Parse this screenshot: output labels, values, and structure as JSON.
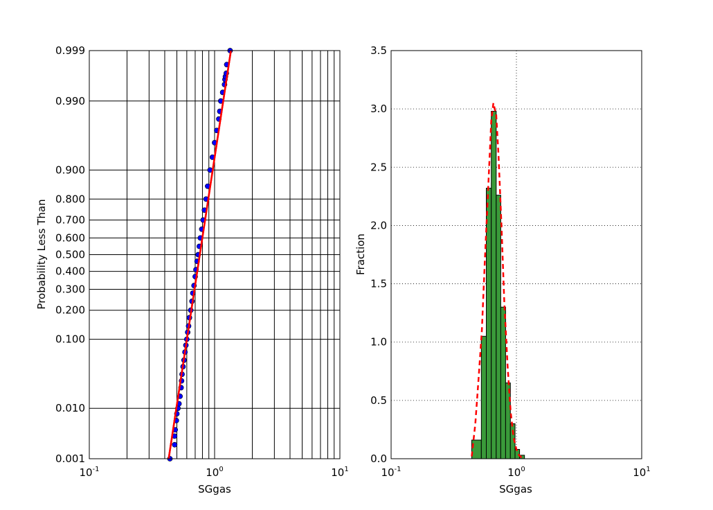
{
  "chart_data": [
    {
      "type": "scatter",
      "panel": "probability-plot",
      "xscale": "log",
      "xlim": [
        0.1,
        10
      ],
      "xlabel": "SGgas",
      "ylabel": "Probability Less Than",
      "yscale": "normal-probability",
      "ylim": [
        0.001,
        0.999
      ],
      "grid": true,
      "x_ticks": [
        {
          "value": 0.1,
          "base": "10",
          "exp": "-1"
        },
        {
          "value": 1,
          "base": "10",
          "exp": "0"
        },
        {
          "value": 10,
          "base": "10",
          "exp": "1"
        }
      ],
      "y_ticks": [
        {
          "value": 0.001,
          "label": "0.001"
        },
        {
          "value": 0.01,
          "label": "0.010"
        },
        {
          "value": 0.1,
          "label": "0.100"
        },
        {
          "value": 0.2,
          "label": "0.200"
        },
        {
          "value": 0.3,
          "label": "0.300"
        },
        {
          "value": 0.4,
          "label": "0.400"
        },
        {
          "value": 0.5,
          "label": "0.500"
        },
        {
          "value": 0.6,
          "label": "0.600"
        },
        {
          "value": 0.7,
          "label": "0.700"
        },
        {
          "value": 0.8,
          "label": "0.800"
        },
        {
          "value": 0.9,
          "label": "0.900"
        },
        {
          "value": 0.99,
          "label": "0.990"
        },
        {
          "value": 0.999,
          "label": "0.999"
        }
      ],
      "series": [
        {
          "kind": "points",
          "color": "#0000ff",
          "points": [
            {
              "x": 0.44,
              "p": 0.001
            },
            {
              "x": 0.48,
              "p": 0.002
            },
            {
              "x": 0.48,
              "p": 0.003
            },
            {
              "x": 0.485,
              "p": 0.004
            },
            {
              "x": 0.495,
              "p": 0.006
            },
            {
              "x": 0.5,
              "p": 0.008
            },
            {
              "x": 0.51,
              "p": 0.01
            },
            {
              "x": 0.52,
              "p": 0.012
            },
            {
              "x": 0.53,
              "p": 0.016
            },
            {
              "x": 0.54,
              "p": 0.022
            },
            {
              "x": 0.545,
              "p": 0.028
            },
            {
              "x": 0.55,
              "p": 0.035
            },
            {
              "x": 0.56,
              "p": 0.045
            },
            {
              "x": 0.57,
              "p": 0.055
            },
            {
              "x": 0.58,
              "p": 0.07
            },
            {
              "x": 0.59,
              "p": 0.085
            },
            {
              "x": 0.6,
              "p": 0.1
            },
            {
              "x": 0.61,
              "p": 0.12
            },
            {
              "x": 0.62,
              "p": 0.14
            },
            {
              "x": 0.63,
              "p": 0.17
            },
            {
              "x": 0.645,
              "p": 0.2
            },
            {
              "x": 0.66,
              "p": 0.24
            },
            {
              "x": 0.67,
              "p": 0.28
            },
            {
              "x": 0.685,
              "p": 0.32
            },
            {
              "x": 0.7,
              "p": 0.37
            },
            {
              "x": 0.71,
              "p": 0.41
            },
            {
              "x": 0.725,
              "p": 0.46
            },
            {
              "x": 0.74,
              "p": 0.5
            },
            {
              "x": 0.755,
              "p": 0.55
            },
            {
              "x": 0.77,
              "p": 0.6
            },
            {
              "x": 0.79,
              "p": 0.65
            },
            {
              "x": 0.81,
              "p": 0.7
            },
            {
              "x": 0.83,
              "p": 0.75
            },
            {
              "x": 0.855,
              "p": 0.8
            },
            {
              "x": 0.88,
              "p": 0.85
            },
            {
              "x": 0.92,
              "p": 0.9
            },
            {
              "x": 0.96,
              "p": 0.93
            },
            {
              "x": 1.0,
              "p": 0.955
            },
            {
              "x": 1.04,
              "p": 0.97
            },
            {
              "x": 1.08,
              "p": 0.98
            },
            {
              "x": 1.1,
              "p": 0.985
            },
            {
              "x": 1.12,
              "p": 0.99
            },
            {
              "x": 1.16,
              "p": 0.993
            },
            {
              "x": 1.2,
              "p": 0.995
            },
            {
              "x": 1.21,
              "p": 0.996
            },
            {
              "x": 1.22,
              "p": 0.9965
            },
            {
              "x": 1.24,
              "p": 0.997
            },
            {
              "x": 1.25,
              "p": 0.998
            },
            {
              "x": 1.33,
              "p": 0.999
            }
          ]
        },
        {
          "kind": "fit-line",
          "color": "#ff0000",
          "points": [
            {
              "x": 0.43,
              "p": 0.001
            },
            {
              "x": 1.35,
              "p": 0.999
            }
          ]
        }
      ]
    },
    {
      "type": "bar",
      "panel": "histogram",
      "xscale": "log",
      "xlim": [
        0.1,
        10
      ],
      "ylim": [
        0,
        3.5
      ],
      "xlabel": "SGgas",
      "ylabel": "Fraction",
      "grid": true,
      "bar_color": "#3a9a3a",
      "x_ticks": [
        {
          "value": 0.1,
          "base": "10",
          "exp": "-1"
        },
        {
          "value": 1,
          "base": "10",
          "exp": "0"
        },
        {
          "value": 10,
          "base": "10",
          "exp": "1"
        }
      ],
      "y_ticks": [
        "0.0",
        "0.5",
        "1.0",
        "1.5",
        "2.0",
        "2.5",
        "3.0",
        "3.5"
      ],
      "bins": [
        {
          "x0": 0.44,
          "x1": 0.525,
          "value": 0.16
        },
        {
          "x0": 0.525,
          "x1": 0.575,
          "value": 1.05
        },
        {
          "x0": 0.575,
          "x1": 0.63,
          "value": 2.32
        },
        {
          "x0": 0.63,
          "x1": 0.69,
          "value": 2.98
        },
        {
          "x0": 0.69,
          "x1": 0.75,
          "value": 2.26
        },
        {
          "x0": 0.75,
          "x1": 0.82,
          "value": 1.3
        },
        {
          "x0": 0.82,
          "x1": 0.895,
          "value": 0.65
        },
        {
          "x0": 0.895,
          "x1": 0.975,
          "value": 0.3
        },
        {
          "x0": 0.975,
          "x1": 1.06,
          "value": 0.08
        },
        {
          "x0": 1.06,
          "x1": 1.16,
          "value": 0.03
        }
      ],
      "series": [
        {
          "kind": "pdf-curve",
          "color": "#ff0000",
          "style": "dashed",
          "points": [
            {
              "x": 0.44,
              "y": 0.02
            },
            {
              "x": 0.47,
              "y": 0.3
            },
            {
              "x": 0.5,
              "y": 0.7
            },
            {
              "x": 0.53,
              "y": 1.1
            },
            {
              "x": 0.56,
              "y": 1.7
            },
            {
              "x": 0.6,
              "y": 2.4
            },
            {
              "x": 0.63,
              "y": 2.9
            },
            {
              "x": 0.655,
              "y": 3.05
            },
            {
              "x": 0.69,
              "y": 2.95
            },
            {
              "x": 0.72,
              "y": 2.6
            },
            {
              "x": 0.76,
              "y": 2.0
            },
            {
              "x": 0.8,
              "y": 1.35
            },
            {
              "x": 0.85,
              "y": 0.8
            },
            {
              "x": 0.9,
              "y": 0.4
            },
            {
              "x": 0.95,
              "y": 0.18
            },
            {
              "x": 1.0,
              "y": 0.08
            },
            {
              "x": 1.05,
              "y": 0.03
            },
            {
              "x": 1.1,
              "y": 0.01
            }
          ]
        }
      ]
    }
  ]
}
